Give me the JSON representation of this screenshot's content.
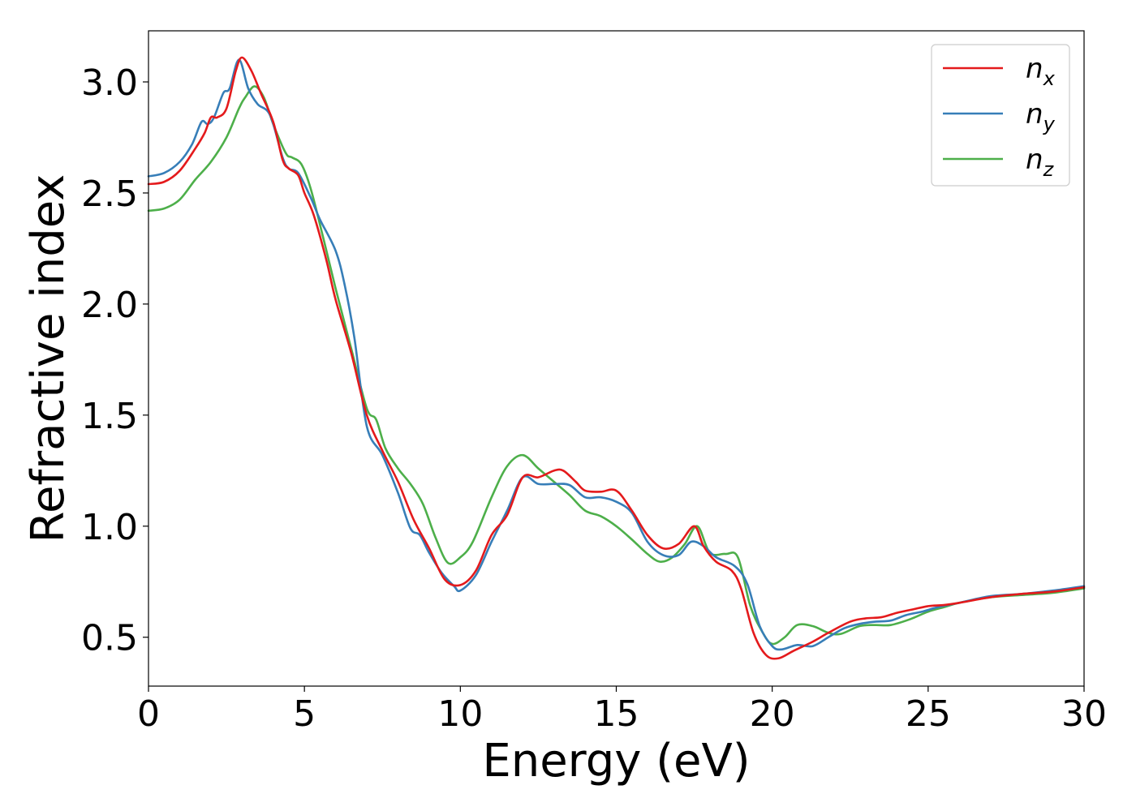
{
  "chart_data": {
    "type": "line",
    "title": "",
    "xlabel": "Energy (eV)",
    "ylabel": "Refractive index",
    "xlim": [
      0,
      30
    ],
    "ylim": [
      0.28,
      3.23
    ],
    "xticks": [
      0,
      5,
      10,
      15,
      20,
      25,
      30
    ],
    "xtick_labels": [
      "0",
      "5",
      "10",
      "15",
      "20",
      "25",
      "30"
    ],
    "yticks": [
      0.5,
      1.0,
      1.5,
      2.0,
      2.5,
      3.0
    ],
    "ytick_labels": [
      "0.5",
      "1.0",
      "1.5",
      "2.0",
      "2.5",
      "3.0"
    ],
    "grid": false,
    "legend_position": "top-right",
    "series": [
      {
        "name": "n",
        "subscript": "x",
        "color": "#e41a1c",
        "points": [
          [
            0,
            2.54
          ],
          [
            0.5,
            2.55
          ],
          [
            1,
            2.6
          ],
          [
            1.5,
            2.7
          ],
          [
            1.8,
            2.77
          ],
          [
            2.0,
            2.84
          ],
          [
            2.2,
            2.84
          ],
          [
            2.5,
            2.88
          ],
          [
            2.8,
            3.05
          ],
          [
            3.0,
            3.11
          ],
          [
            3.3,
            3.05
          ],
          [
            3.6,
            2.95
          ],
          [
            4.0,
            2.82
          ],
          [
            4.3,
            2.65
          ],
          [
            4.5,
            2.61
          ],
          [
            4.8,
            2.58
          ],
          [
            5.0,
            2.5
          ],
          [
            5.3,
            2.4
          ],
          [
            5.7,
            2.2
          ],
          [
            6.0,
            2.02
          ],
          [
            6.5,
            1.78
          ],
          [
            7.0,
            1.5
          ],
          [
            7.5,
            1.34
          ],
          [
            8.0,
            1.2
          ],
          [
            8.5,
            1.03
          ],
          [
            9.0,
            0.9
          ],
          [
            9.5,
            0.76
          ],
          [
            10.0,
            0.735
          ],
          [
            10.5,
            0.8
          ],
          [
            11.0,
            0.96
          ],
          [
            11.5,
            1.05
          ],
          [
            12.0,
            1.22
          ],
          [
            12.5,
            1.22
          ],
          [
            13.0,
            1.25
          ],
          [
            13.3,
            1.25
          ],
          [
            13.7,
            1.2
          ],
          [
            14.0,
            1.16
          ],
          [
            14.5,
            1.155
          ],
          [
            15.0,
            1.16
          ],
          [
            15.5,
            1.07
          ],
          [
            16.0,
            0.96
          ],
          [
            16.5,
            0.9
          ],
          [
            17.0,
            0.92
          ],
          [
            17.5,
            1.0
          ],
          [
            17.8,
            0.91
          ],
          [
            18.2,
            0.84
          ],
          [
            18.7,
            0.8
          ],
          [
            19.0,
            0.72
          ],
          [
            19.4,
            0.52
          ],
          [
            19.8,
            0.42
          ],
          [
            20.2,
            0.405
          ],
          [
            20.7,
            0.44
          ],
          [
            21.3,
            0.48
          ],
          [
            21.8,
            0.52
          ],
          [
            22.5,
            0.57
          ],
          [
            23.0,
            0.585
          ],
          [
            23.5,
            0.59
          ],
          [
            24.0,
            0.61
          ],
          [
            24.5,
            0.625
          ],
          [
            25.0,
            0.64
          ],
          [
            25.5,
            0.645
          ],
          [
            26.0,
            0.655
          ],
          [
            27.0,
            0.68
          ],
          [
            28.0,
            0.695
          ],
          [
            29.0,
            0.705
          ],
          [
            30.0,
            0.725
          ]
        ]
      },
      {
        "name": "n",
        "subscript": "y",
        "color": "#377eb8",
        "points": [
          [
            0,
            2.575
          ],
          [
            0.5,
            2.59
          ],
          [
            1.0,
            2.64
          ],
          [
            1.4,
            2.72
          ],
          [
            1.7,
            2.82
          ],
          [
            1.9,
            2.81
          ],
          [
            2.1,
            2.84
          ],
          [
            2.4,
            2.95
          ],
          [
            2.6,
            2.97
          ],
          [
            2.9,
            3.1
          ],
          [
            3.2,
            2.97
          ],
          [
            3.5,
            2.9
          ],
          [
            3.9,
            2.85
          ],
          [
            4.3,
            2.66
          ],
          [
            4.5,
            2.61
          ],
          [
            4.8,
            2.59
          ],
          [
            5.2,
            2.48
          ],
          [
            5.5,
            2.38
          ],
          [
            6.0,
            2.24
          ],
          [
            6.3,
            2.08
          ],
          [
            6.6,
            1.85
          ],
          [
            7.0,
            1.45
          ],
          [
            7.5,
            1.32
          ],
          [
            8.0,
            1.15
          ],
          [
            8.4,
            0.99
          ],
          [
            8.7,
            0.96
          ],
          [
            9.0,
            0.88
          ],
          [
            9.4,
            0.79
          ],
          [
            9.8,
            0.73
          ],
          [
            10.0,
            0.71
          ],
          [
            10.5,
            0.78
          ],
          [
            11.0,
            0.93
          ],
          [
            11.5,
            1.07
          ],
          [
            12.0,
            1.22
          ],
          [
            12.5,
            1.19
          ],
          [
            13.0,
            1.19
          ],
          [
            13.5,
            1.185
          ],
          [
            14.0,
            1.13
          ],
          [
            14.5,
            1.13
          ],
          [
            15.0,
            1.11
          ],
          [
            15.5,
            1.06
          ],
          [
            16.0,
            0.93
          ],
          [
            16.5,
            0.87
          ],
          [
            17.0,
            0.87
          ],
          [
            17.4,
            0.93
          ],
          [
            17.8,
            0.91
          ],
          [
            18.2,
            0.86
          ],
          [
            18.8,
            0.82
          ],
          [
            19.2,
            0.74
          ],
          [
            19.6,
            0.55
          ],
          [
            20.0,
            0.46
          ],
          [
            20.3,
            0.445
          ],
          [
            20.8,
            0.465
          ],
          [
            21.3,
            0.46
          ],
          [
            21.8,
            0.5
          ],
          [
            22.3,
            0.54
          ],
          [
            22.8,
            0.56
          ],
          [
            23.3,
            0.57
          ],
          [
            23.8,
            0.575
          ],
          [
            24.3,
            0.6
          ],
          [
            24.8,
            0.615
          ],
          [
            25.3,
            0.635
          ],
          [
            26.0,
            0.655
          ],
          [
            27.0,
            0.685
          ],
          [
            28.0,
            0.695
          ],
          [
            29.0,
            0.71
          ],
          [
            30.0,
            0.73
          ]
        ]
      },
      {
        "name": "n",
        "subscript": "z",
        "color": "#4daf4a",
        "points": [
          [
            0,
            2.42
          ],
          [
            0.5,
            2.43
          ],
          [
            1.0,
            2.47
          ],
          [
            1.5,
            2.56
          ],
          [
            2.0,
            2.64
          ],
          [
            2.5,
            2.75
          ],
          [
            2.9,
            2.88
          ],
          [
            3.1,
            2.93
          ],
          [
            3.4,
            2.98
          ],
          [
            3.7,
            2.93
          ],
          [
            4.0,
            2.81
          ],
          [
            4.4,
            2.68
          ],
          [
            4.6,
            2.66
          ],
          [
            4.9,
            2.63
          ],
          [
            5.2,
            2.52
          ],
          [
            5.6,
            2.3
          ],
          [
            6.0,
            2.07
          ],
          [
            6.5,
            1.8
          ],
          [
            7.0,
            1.53
          ],
          [
            7.3,
            1.48
          ],
          [
            7.6,
            1.35
          ],
          [
            8.0,
            1.26
          ],
          [
            8.4,
            1.19
          ],
          [
            8.8,
            1.1
          ],
          [
            9.2,
            0.95
          ],
          [
            9.6,
            0.835
          ],
          [
            10.0,
            0.86
          ],
          [
            10.4,
            0.93
          ],
          [
            11.0,
            1.13
          ],
          [
            11.5,
            1.27
          ],
          [
            12.0,
            1.32
          ],
          [
            12.5,
            1.26
          ],
          [
            13.0,
            1.2
          ],
          [
            13.5,
            1.14
          ],
          [
            14.0,
            1.07
          ],
          [
            14.5,
            1.045
          ],
          [
            15.0,
            1.0
          ],
          [
            15.5,
            0.94
          ],
          [
            16.0,
            0.875
          ],
          [
            16.4,
            0.84
          ],
          [
            16.8,
            0.86
          ],
          [
            17.2,
            0.92
          ],
          [
            17.6,
            1.0
          ],
          [
            18.0,
            0.88
          ],
          [
            18.5,
            0.875
          ],
          [
            18.9,
            0.86
          ],
          [
            19.3,
            0.64
          ],
          [
            19.7,
            0.52
          ],
          [
            20.0,
            0.47
          ],
          [
            20.4,
            0.5
          ],
          [
            20.8,
            0.555
          ],
          [
            21.3,
            0.55
          ],
          [
            21.8,
            0.52
          ],
          [
            22.2,
            0.515
          ],
          [
            22.8,
            0.55
          ],
          [
            23.3,
            0.555
          ],
          [
            23.8,
            0.555
          ],
          [
            24.4,
            0.58
          ],
          [
            25.0,
            0.615
          ],
          [
            25.5,
            0.635
          ],
          [
            26.0,
            0.655
          ],
          [
            27.0,
            0.68
          ],
          [
            28.0,
            0.69
          ],
          [
            29.0,
            0.7
          ],
          [
            30.0,
            0.72
          ]
        ]
      }
    ]
  }
}
